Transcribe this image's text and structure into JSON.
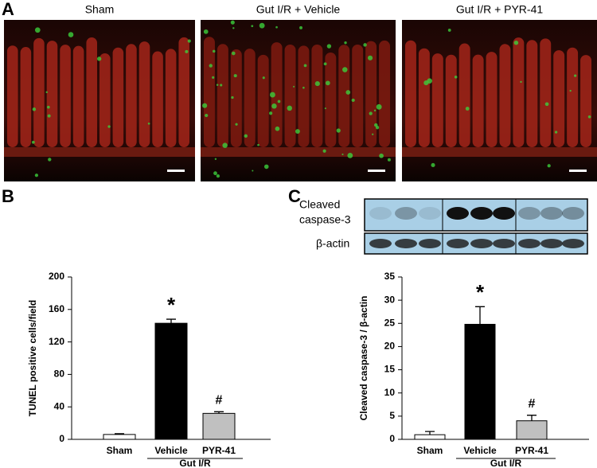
{
  "panels": {
    "a": "A",
    "b": "B",
    "c": "C"
  },
  "images": [
    {
      "title": "Sham"
    },
    {
      "title": "Gut I/R + Vehicle"
    },
    {
      "title": "Gut I/R + PYR-41"
    }
  ],
  "blot": {
    "rows": [
      [
        "Cleaved",
        "caspase-3"
      ],
      [
        "β-actin"
      ]
    ]
  },
  "chart_data": [
    {
      "type": "bar",
      "ylabel": "TUNEL positive cells/field",
      "categories": [
        "Sham",
        "Vehicle",
        "PYR-41"
      ],
      "group_label": "Gut I/R",
      "values": [
        6,
        143,
        32
      ],
      "errors": [
        1,
        5,
        2
      ],
      "colors": [
        "#ffffff",
        "#000000",
        "#c0c0c0"
      ],
      "markers": [
        null,
        "*",
        "#"
      ],
      "ylim": [
        0,
        200
      ],
      "yticks": [
        0,
        40,
        80,
        120,
        160,
        200
      ]
    },
    {
      "type": "bar",
      "ylabel": "Cleaved caspase-3 / β-actin",
      "categories": [
        "Sham",
        "Vehicle",
        "PYR-41"
      ],
      "group_label": "Gut I/R",
      "values": [
        1.0,
        24.8,
        4.0
      ],
      "errors": [
        0.7,
        3.8,
        1.2
      ],
      "colors": [
        "#ffffff",
        "#000000",
        "#c0c0c0"
      ],
      "markers": [
        null,
        "*",
        "#"
      ],
      "ylim": [
        0,
        35
      ],
      "yticks": [
        0,
        5,
        10,
        15,
        20,
        25,
        30,
        35
      ]
    }
  ]
}
